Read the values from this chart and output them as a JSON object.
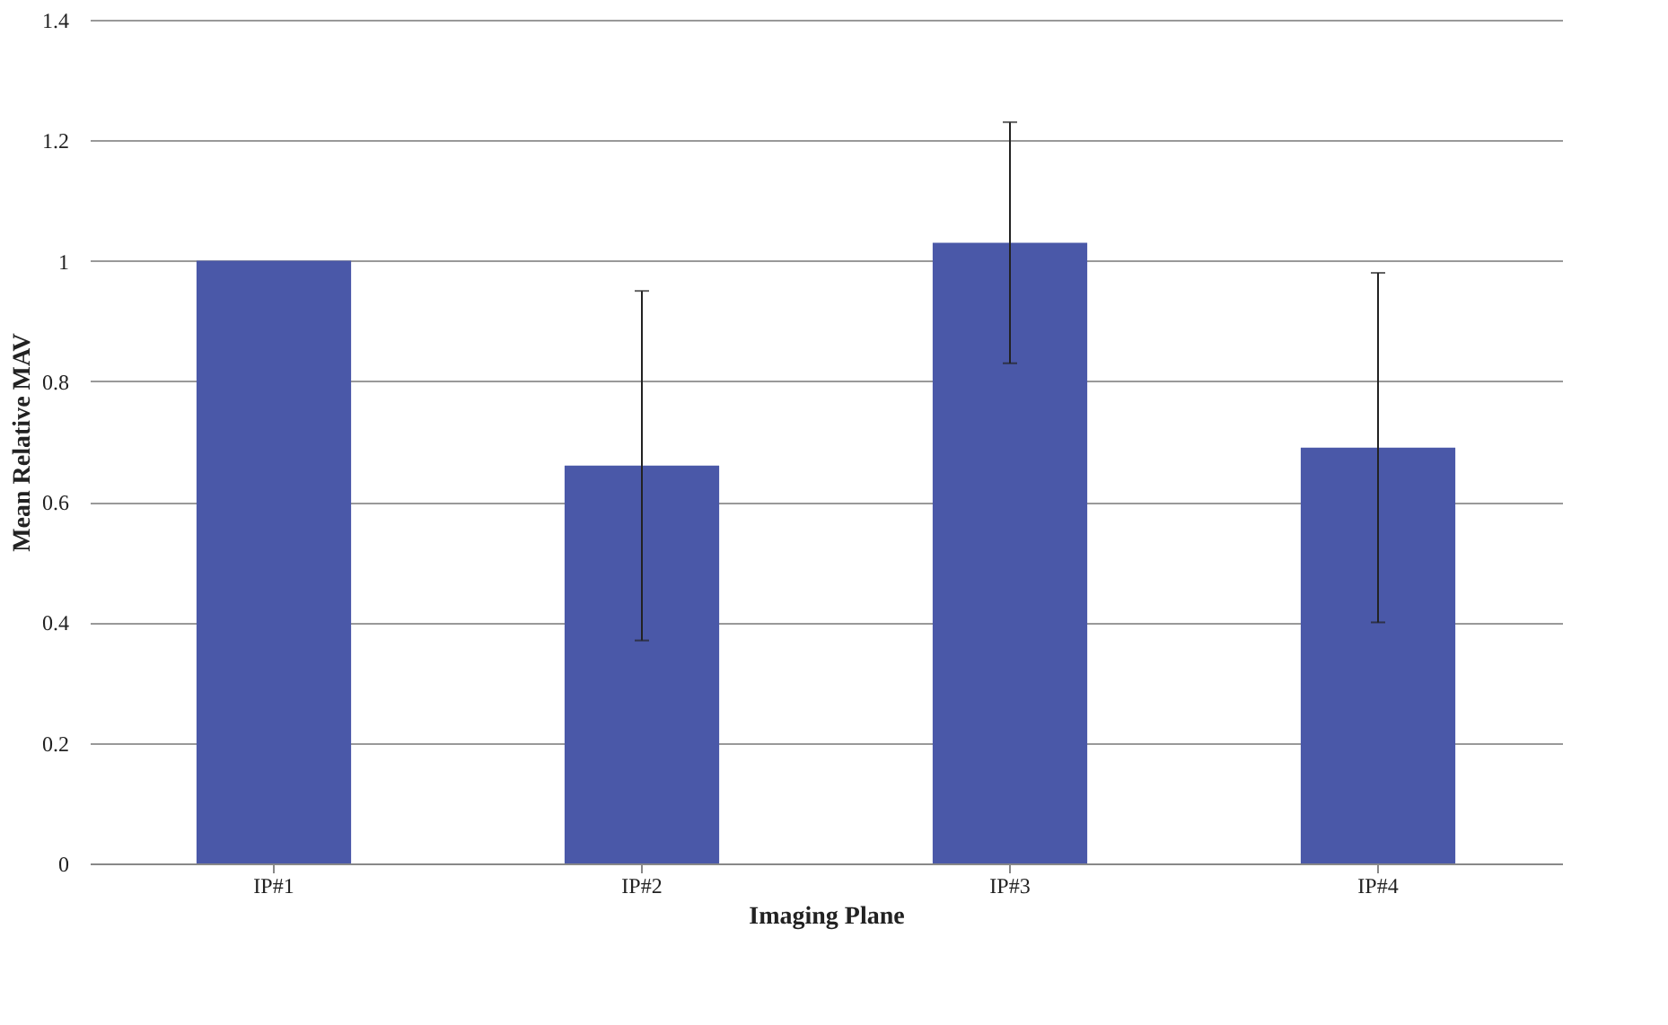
{
  "chart_data": {
    "type": "bar",
    "xlabel": "Imaging Plane",
    "ylabel": "Mean Relative MAV",
    "categories": [
      "IP#1",
      "IP#2",
      "IP#3",
      "IP#4"
    ],
    "values": [
      1.0,
      0.66,
      1.03,
      0.69
    ],
    "errors": [
      null,
      0.29,
      0.2,
      0.29
    ],
    "color": "#4a58a8",
    "ylim": [
      0,
      1.4
    ],
    "yticks": [
      0,
      0.2,
      0.4,
      0.6,
      0.8,
      1,
      1.2,
      1.4
    ],
    "grid": "y"
  }
}
